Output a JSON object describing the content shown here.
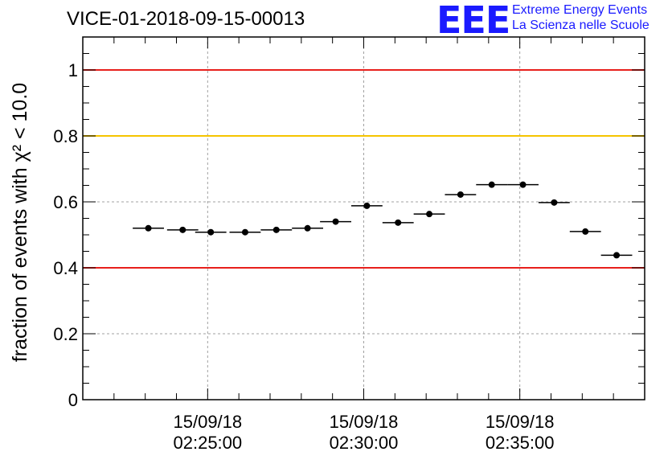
{
  "header": {
    "title": "VICE-01-2018-09-15-00013",
    "logo_mark": "EEE",
    "logo_line1": "Extreme Energy Events",
    "logo_line2": "La Scienza nelle Scuole"
  },
  "chart_data": {
    "type": "scatter",
    "title": "VICE-01-2018-09-15-00013",
    "ylabel": "fraction of events with χ² < 10.0",
    "xlabel": "",
    "ylim": [
      0,
      1.1
    ],
    "y_ticks": [
      {
        "value": 0,
        "label": "0"
      },
      {
        "value": 0.2,
        "label": "0.2"
      },
      {
        "value": 0.4,
        "label": "0.4"
      },
      {
        "value": 0.6,
        "label": "0.6"
      },
      {
        "value": 0.8,
        "label": "0.8"
      },
      {
        "value": 1,
        "label": "1"
      }
    ],
    "x_range_min": [
      21.0,
      39.0
    ],
    "x_ticks": [
      {
        "value": 25,
        "date": "15/09/18",
        "time": "02:25:00"
      },
      {
        "value": 30,
        "date": "15/09/18",
        "time": "02:30:00"
      },
      {
        "value": 35,
        "date": "15/09/18",
        "time": "02:35:00"
      }
    ],
    "grid": true,
    "reference_lines": [
      {
        "y": 1.0,
        "color": "#e8201c"
      },
      {
        "y": 0.8,
        "color": "#f5c400"
      },
      {
        "y": 0.4,
        "color": "#e8201c"
      }
    ],
    "points": [
      {
        "x": 23.1,
        "y": 0.52,
        "xerr": 0.5
      },
      {
        "x": 24.2,
        "y": 0.515,
        "xerr": 0.5
      },
      {
        "x": 25.1,
        "y": 0.508,
        "xerr": 0.5
      },
      {
        "x": 26.2,
        "y": 0.508,
        "xerr": 0.5
      },
      {
        "x": 27.2,
        "y": 0.515,
        "xerr": 0.5
      },
      {
        "x": 28.2,
        "y": 0.52,
        "xerr": 0.5
      },
      {
        "x": 29.1,
        "y": 0.54,
        "xerr": 0.5
      },
      {
        "x": 30.1,
        "y": 0.588,
        "xerr": 0.5
      },
      {
        "x": 31.1,
        "y": 0.537,
        "xerr": 0.5
      },
      {
        "x": 32.1,
        "y": 0.563,
        "xerr": 0.5
      },
      {
        "x": 33.1,
        "y": 0.622,
        "xerr": 0.5
      },
      {
        "x": 34.1,
        "y": 0.652,
        "xerr": 0.5
      },
      {
        "x": 35.1,
        "y": 0.652,
        "xerr": 0.5
      },
      {
        "x": 36.1,
        "y": 0.598,
        "xerr": 0.5
      },
      {
        "x": 37.1,
        "y": 0.51,
        "xerr": 0.5
      },
      {
        "x": 38.1,
        "y": 0.438,
        "xerr": 0.5
      }
    ]
  }
}
